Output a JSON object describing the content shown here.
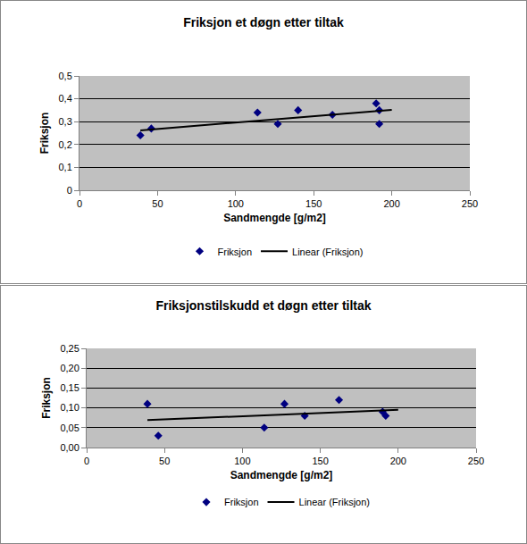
{
  "chart_data": [
    {
      "type": "scatter",
      "title": "Friksjon et døgn etter tiltak",
      "x_label": "Sandmengde [g/m2]",
      "y_label": "Friksjon",
      "xlim": [
        0,
        250
      ],
      "xticks": [
        0,
        50,
        100,
        150,
        200,
        250
      ],
      "ylim": [
        0,
        0.5
      ],
      "yticks": [
        0,
        {
          "value": 0.1,
          "label": "0,1"
        },
        {
          "value": 0.2,
          "label": "0,2"
        },
        {
          "value": 0.3,
          "label": "0,3"
        },
        {
          "value": 0.4,
          "label": "0,4"
        },
        {
          "value": 0.5,
          "label": "0,5"
        }
      ],
      "grid": "y",
      "legend": "bottom",
      "series": [
        {
          "name": "Friksjon",
          "type": "scatter",
          "marker": "diamond",
          "color": "#000080",
          "x": [
            39,
            46,
            114,
            127,
            140,
            162,
            190,
            192,
            192
          ],
          "values": [
            0.24,
            0.27,
            0.34,
            0.29,
            0.35,
            0.33,
            0.38,
            0.35,
            0.29
          ]
        },
        {
          "name": "Linear (Friksjon)",
          "type": "line",
          "line_style": "solid",
          "color": "#000000",
          "x": [
            39,
            200
          ],
          "values": [
            0.262,
            0.352
          ]
        }
      ]
    },
    {
      "type": "scatter",
      "title": "Friksjonstilskudd et døgn etter tiltak",
      "x_label": "Sandmengde [g/m2]",
      "y_label": "Friksjon",
      "xlim": [
        0,
        250
      ],
      "xticks": [
        0,
        50,
        100,
        150,
        200,
        250
      ],
      "ylim": [
        0,
        0.25
      ],
      "yticks": [
        {
          "value": 0,
          "label": "0,00"
        },
        {
          "value": 0.05,
          "label": "0,05"
        },
        {
          "value": 0.1,
          "label": "0,10"
        },
        {
          "value": 0.15,
          "label": "0,15"
        },
        {
          "value": 0.2,
          "label": "0,20"
        },
        {
          "value": 0.25,
          "label": "0,25"
        }
      ],
      "grid": "y",
      "legend": "bottom",
      "series": [
        {
          "name": "Friksjon",
          "type": "scatter",
          "marker": "diamond",
          "color": "#000080",
          "x": [
            39,
            46,
            114,
            127,
            140,
            162,
            190,
            192
          ],
          "values": [
            0.11,
            0.03,
            0.05,
            0.11,
            0.08,
            0.12,
            0.09,
            0.08
          ]
        },
        {
          "name": "Linear (Friksjon)",
          "type": "line",
          "line_style": "solid",
          "color": "#000000",
          "x": [
            39,
            200
          ],
          "values": [
            0.069,
            0.095
          ]
        }
      ]
    }
  ]
}
